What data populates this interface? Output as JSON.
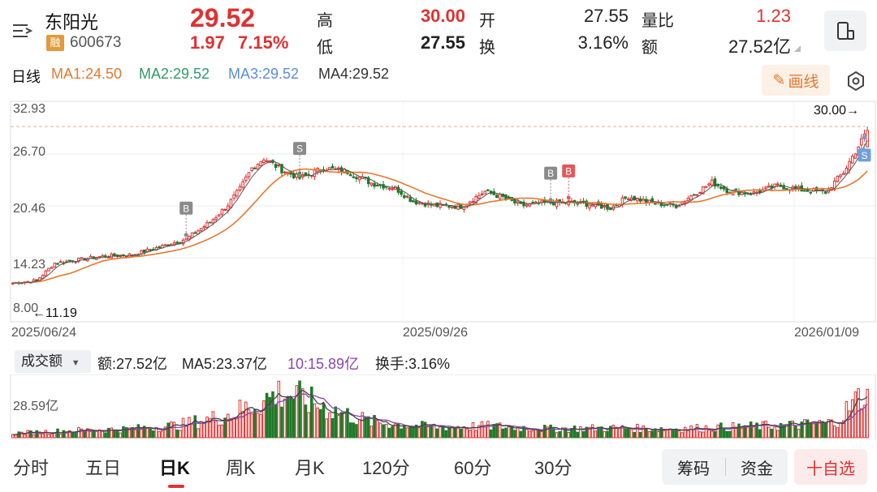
{
  "header": {
    "stock_name": "东阳光",
    "badge": "融",
    "stock_code": "600673",
    "price": "29.52",
    "change": "1.97",
    "change_pct": "7.15%",
    "high_label": "高",
    "high_value": "30.00",
    "open_label": "开",
    "open_value": "27.55",
    "ratio_label": "量比",
    "ratio_value": "1.23",
    "low_label": "低",
    "low_value": "27.55",
    "turnover_label": "换",
    "turnover_value": "3.16%",
    "amount_label": "额",
    "amount_value": "27.52亿"
  },
  "ma_bar": {
    "period": "日线",
    "ma1": "MA1:24.50",
    "ma2": "MA2:29.52",
    "ma3": "MA3:29.52",
    "ma4": "MA4:29.52",
    "draw_button": "画线"
  },
  "price_axis": {
    "labels": [
      "32.93",
      "26.70",
      "20.46",
      "14.23",
      "8.00"
    ]
  },
  "annotations": {
    "max_label": "30.00→",
    "min_label": "←11.19"
  },
  "date_axis": {
    "labels": [
      "2025/06/24",
      "2025/09/26",
      "2026/01/09"
    ]
  },
  "volume_bar": {
    "select": "成交额",
    "amount": "额:27.52亿",
    "ma5": "MA5:23.37亿",
    "ma10": "10:15.89亿",
    "turnover": "换手:3.16%",
    "axis_label": "28.59亿"
  },
  "tabs": [
    "分时",
    "五日",
    "日K",
    "周K",
    "月K",
    "120分",
    "60分",
    "30分"
  ],
  "active_tab": "日K",
  "actions": {
    "chips": "筹码",
    "funds": "资金",
    "watchlist": "十自选"
  },
  "markers": [
    {
      "label": "B",
      "color": "#8a8a8a"
    },
    {
      "label": "S",
      "color": "#8a8a8a"
    },
    {
      "label": "B",
      "color": "#8a8a8a"
    },
    {
      "label": "B",
      "color": "#e05a5a"
    },
    {
      "label": "S",
      "color": "#6f9fdc"
    }
  ],
  "colors": {
    "up": "#e03131",
    "down": "#1f7a28",
    "ma1": "#e8772e",
    "ma2": "#2e9a6a",
    "ma3": "#5a8fd8",
    "ma_vol": "#8e44ad",
    "accent": "#e03131"
  },
  "chart_data": {
    "type": "candlestick",
    "ylim": [
      8.0,
      32.93
    ],
    "start_date": "2025/06/24",
    "end_date": "2026/01/09",
    "close_keypoints": [
      [
        0,
        11.2
      ],
      [
        8,
        11.5
      ],
      [
        14,
        13.6
      ],
      [
        22,
        14.0
      ],
      [
        30,
        14.4
      ],
      [
        40,
        14.6
      ],
      [
        50,
        15.6
      ],
      [
        58,
        16.5
      ],
      [
        66,
        18.5
      ],
      [
        72,
        20.6
      ],
      [
        76,
        22.5
      ],
      [
        80,
        25.0
      ],
      [
        84,
        26.2
      ],
      [
        90,
        24.8
      ],
      [
        96,
        23.8
      ],
      [
        104,
        25.0
      ],
      [
        112,
        24.6
      ],
      [
        120,
        23.2
      ],
      [
        128,
        22.6
      ],
      [
        134,
        21.0
      ],
      [
        142,
        20.5
      ],
      [
        150,
        20.4
      ],
      [
        158,
        22.2
      ],
      [
        164,
        21.5
      ],
      [
        170,
        20.5
      ],
      [
        178,
        20.8
      ],
      [
        186,
        20.9
      ],
      [
        194,
        20.6
      ],
      [
        200,
        20.2
      ],
      [
        206,
        21.6
      ],
      [
        214,
        20.8
      ],
      [
        222,
        20.5
      ],
      [
        228,
        21.9
      ],
      [
        234,
        23.3
      ],
      [
        240,
        22.2
      ],
      [
        248,
        22.0
      ],
      [
        256,
        22.9
      ],
      [
        264,
        22.4
      ],
      [
        272,
        22.1
      ],
      [
        278,
        24.5
      ],
      [
        282,
        27.0
      ],
      [
        286,
        29.52
      ]
    ],
    "last_open": 27.55,
    "last_high": 30.0,
    "last_low": 27.55,
    "last_close": 29.52,
    "volume_ylim": [
      0,
      35
    ],
    "volume_keypoints": [
      [
        0,
        2.5
      ],
      [
        20,
        4.0
      ],
      [
        40,
        5.0
      ],
      [
        55,
        7.0
      ],
      [
        70,
        12.0
      ],
      [
        80,
        18.0
      ],
      [
        90,
        26.0
      ],
      [
        100,
        20.0
      ],
      [
        110,
        14.0
      ],
      [
        120,
        9.0
      ],
      [
        140,
        6.0
      ],
      [
        160,
        6.5
      ],
      [
        180,
        5.0
      ],
      [
        200,
        5.5
      ],
      [
        220,
        5.0
      ],
      [
        240,
        6.0
      ],
      [
        260,
        7.0
      ],
      [
        275,
        8.5
      ],
      [
        286,
        27.5
      ]
    ]
  }
}
